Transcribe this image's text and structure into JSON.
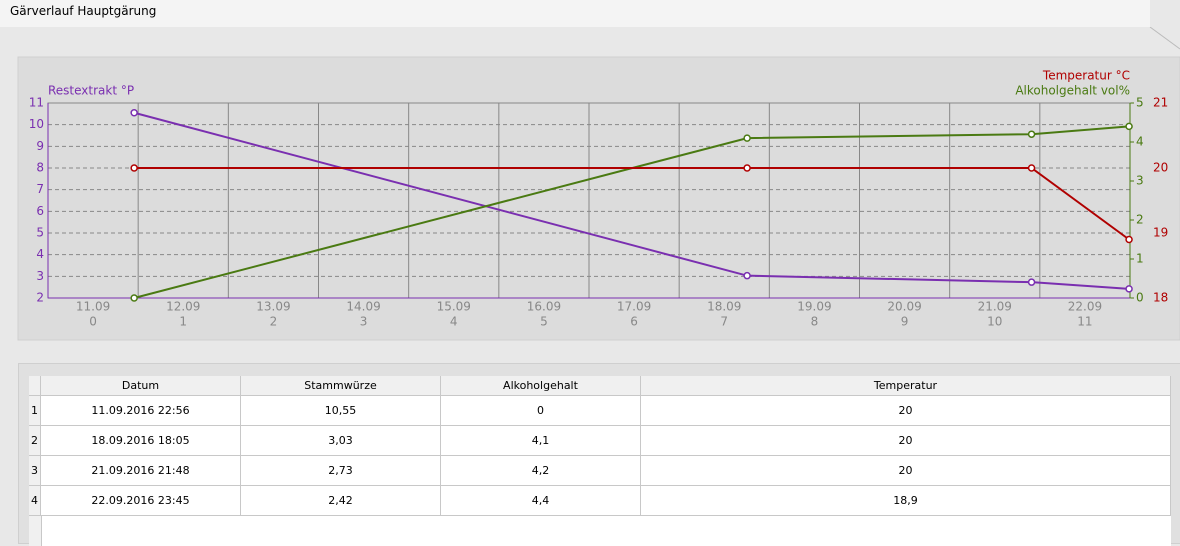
{
  "header": {
    "title": "Gärverlauf Hauptgärung"
  },
  "chart_data": {
    "type": "line",
    "categories": [
      "11.09",
      "12.09",
      "13.09",
      "14.09",
      "15.09",
      "16.09",
      "17.09",
      "18.09",
      "19.09",
      "20.09",
      "21.09",
      "22.09"
    ],
    "day_index": [
      0,
      1,
      2,
      3,
      4,
      5,
      6,
      7,
      8,
      9,
      10,
      11
    ],
    "x": [
      "11.09.2016 22:56",
      "18.09.2016 18:05",
      "21.09.2016 21:48",
      "22.09.2016 23:45"
    ],
    "series": [
      {
        "name": "Restextrakt °P",
        "color": "#7a2fb0",
        "axis": "y",
        "values": [
          10.55,
          3.03,
          2.73,
          2.42
        ]
      },
      {
        "name": "Alkoholgehalt vol%",
        "color": "#4a7a12",
        "axis": "y2",
        "values": [
          0,
          4.1,
          4.2,
          4.4
        ]
      },
      {
        "name": "Temperatur °C",
        "color": "#b00000",
        "axis": "y3",
        "values": [
          20,
          20,
          20,
          18.9
        ]
      }
    ],
    "ylim": [
      2,
      11
    ],
    "yticks": [
      2,
      3,
      4,
      5,
      6,
      7,
      8,
      9,
      10,
      11
    ],
    "y2lim": [
      0,
      5
    ],
    "y2ticks": [
      0,
      1,
      2,
      3,
      4,
      5
    ],
    "y3lim": [
      18,
      21
    ],
    "y3ticks": [
      18,
      19,
      20,
      21
    ],
    "grid": true
  },
  "table": {
    "columns": [
      "Datum",
      "Stammwürze",
      "Alkoholgehalt",
      "Temperatur"
    ],
    "rows": [
      [
        "1",
        "11.09.2016 22:56",
        "10,55",
        "0",
        "20"
      ],
      [
        "2",
        "18.09.2016 18:05",
        "3,03",
        "4,1",
        "20"
      ],
      [
        "3",
        "21.09.2016 21:48",
        "2,73",
        "4,2",
        "20"
      ],
      [
        "4",
        "22.09.2016 23:45",
        "2,42",
        "4,4",
        "18,9"
      ]
    ]
  }
}
